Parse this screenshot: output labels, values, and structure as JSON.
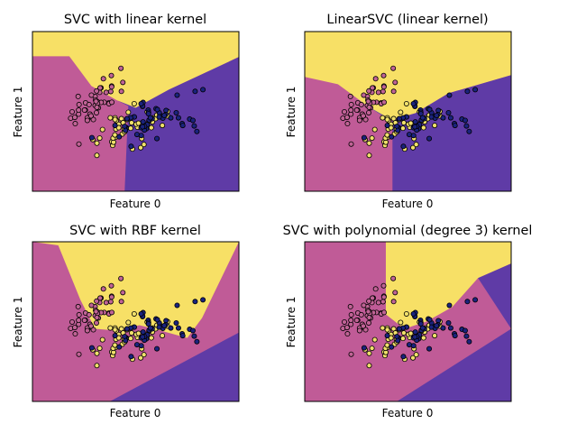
{
  "chart_data": [
    {
      "type": "scatter",
      "title": "SVC with linear kernel",
      "xlabel": "Feature 0",
      "ylabel": "Feature 1",
      "xlim": [
        3.3,
        8.9
      ],
      "ylim": [
        1.0,
        5.4
      ],
      "xticks": [],
      "yticks": [],
      "background": "decision-regions",
      "region_boundaries": [
        [
          3.3,
          4.72
        ],
        [
          4.3,
          4.72
        ],
        [
          4.9,
          3.9
        ],
        [
          5.6,
          3.5
        ],
        [
          6.1,
          3.3
        ],
        [
          7.0,
          3.8
        ],
        [
          8.9,
          4.7
        ]
      ],
      "region_split_x": [
        [
          5.8,
          1.0
        ],
        [
          5.9,
          3.35
        ]
      ]
    },
    {
      "type": "scatter",
      "title": "LinearSVC (linear kernel)",
      "xlabel": "Feature 0",
      "ylabel": "Feature 1",
      "xlim": [
        3.3,
        8.9
      ],
      "ylim": [
        1.0,
        5.4
      ],
      "xticks": [],
      "yticks": [],
      "background": "decision-regions",
      "region_boundaries": [
        [
          3.3,
          4.15
        ],
        [
          4.2,
          3.95
        ],
        [
          5.0,
          3.35
        ],
        [
          5.6,
          2.95
        ],
        [
          6.3,
          3.15
        ],
        [
          7.2,
          3.7
        ],
        [
          8.9,
          4.2
        ]
      ],
      "region_split_x": [
        [
          5.68,
          1.0
        ],
        [
          5.68,
          2.95
        ]
      ]
    },
    {
      "type": "scatter",
      "title": "SVC with RBF kernel",
      "xlabel": "Feature 0",
      "ylabel": "Feature 1",
      "xlim": [
        3.3,
        8.9
      ],
      "ylim": [
        1.0,
        5.4
      ],
      "xticks": [],
      "yticks": [],
      "background": "decision-regions",
      "region_boundaries": [
        [
          3.3,
          5.4
        ],
        [
          4.0,
          5.3
        ],
        [
          4.6,
          3.8
        ],
        [
          5.0,
          3.0
        ],
        [
          5.6,
          2.95
        ],
        [
          6.2,
          3.1
        ],
        [
          6.6,
          3.0
        ],
        [
          7.5,
          2.75
        ],
        [
          7.9,
          3.3
        ]
      ],
      "region_split_x": [
        [
          5.4,
          2.4
        ],
        [
          8.9,
          2.9
        ]
      ]
    },
    {
      "type": "scatter",
      "title": "SVC with polynomial (degree 3) kernel",
      "xlabel": "Feature 0",
      "ylabel": "Feature 1",
      "xlim": [
        3.3,
        8.9
      ],
      "ylim": [
        1.0,
        5.4
      ],
      "xticks": [],
      "yticks": [],
      "background": "decision-regions",
      "region_boundaries": [
        [
          3.3,
          5.4
        ],
        [
          5.5,
          5.4
        ],
        [
          5.5,
          3.4
        ],
        [
          6.0,
          3.0
        ],
        [
          6.6,
          3.2
        ],
        [
          7.3,
          3.6
        ],
        [
          8.0,
          4.4
        ],
        [
          8.9,
          4.8
        ]
      ],
      "region_split_x": [
        [
          5.8,
          2.5
        ],
        [
          8.9,
          3.0
        ]
      ]
    }
  ],
  "points": {
    "description": "Iris dataset, sepal length vs sepal width",
    "class_colors": [
      "#c06395",
      "#f1e06b",
      "#1a237e"
    ],
    "class_labels": [
      "setosa-region",
      "versicolor-region",
      "virginica-region"
    ],
    "x": [
      5.1,
      4.9,
      4.7,
      4.6,
      5.0,
      5.4,
      4.6,
      5.0,
      4.4,
      4.9,
      5.4,
      4.8,
      4.8,
      4.3,
      5.8,
      5.7,
      5.4,
      5.1,
      5.7,
      5.1,
      5.4,
      5.1,
      4.6,
      5.1,
      4.8,
      5.0,
      5.0,
      5.2,
      5.2,
      4.7,
      4.8,
      5.4,
      5.2,
      5.5,
      4.9,
      5.0,
      5.5,
      4.9,
      4.4,
      5.1,
      5.0,
      4.5,
      4.4,
      5.0,
      5.1,
      4.8,
      5.1,
      4.6,
      5.3,
      5.0,
      7.0,
      6.4,
      6.9,
      5.5,
      6.5,
      5.7,
      6.3,
      4.9,
      6.6,
      5.2,
      5.0,
      5.9,
      6.0,
      6.1,
      5.6,
      6.7,
      5.6,
      5.8,
      6.2,
      5.6,
      5.9,
      6.1,
      6.3,
      6.1,
      6.4,
      6.6,
      6.8,
      6.7,
      6.0,
      5.7,
      5.5,
      5.5,
      5.8,
      6.0,
      5.4,
      6.0,
      6.7,
      6.3,
      5.6,
      5.5,
      5.5,
      6.1,
      5.8,
      5.0,
      5.6,
      5.7,
      5.7,
      6.2,
      5.1,
      5.7,
      6.3,
      5.8,
      7.1,
      6.3,
      6.5,
      7.6,
      4.9,
      7.3,
      6.7,
      7.2,
      6.5,
      6.4,
      6.8,
      5.7,
      5.8,
      6.4,
      6.5,
      7.7,
      7.7,
      6.0,
      6.9,
      5.6,
      7.7,
      6.3,
      6.7,
      7.2,
      6.2,
      6.1,
      6.4,
      7.2,
      7.4,
      7.9,
      6.4,
      6.3,
      6.1,
      7.7,
      6.3,
      6.4,
      6.0,
      6.9,
      6.7,
      6.9,
      5.8,
      6.8,
      6.7,
      6.7,
      6.3,
      6.5,
      6.2,
      5.9
    ],
    "y": [
      3.5,
      3.0,
      3.2,
      3.1,
      3.6,
      3.9,
      3.4,
      3.4,
      2.9,
      3.1,
      3.7,
      3.4,
      3.0,
      3.0,
      4.0,
      4.4,
      3.9,
      3.5,
      3.8,
      3.8,
      3.4,
      3.7,
      3.6,
      3.3,
      3.4,
      3.0,
      3.4,
      3.5,
      3.4,
      3.2,
      3.1,
      3.4,
      4.1,
      4.2,
      3.1,
      3.2,
      3.5,
      3.6,
      3.0,
      3.4,
      3.5,
      2.3,
      3.2,
      3.5,
      3.8,
      3.0,
      3.8,
      3.2,
      3.7,
      3.3,
      3.2,
      3.2,
      3.1,
      2.3,
      2.8,
      2.8,
      3.3,
      2.4,
      2.9,
      2.7,
      2.0,
      3.0,
      2.2,
      2.9,
      2.9,
      3.1,
      3.0,
      2.7,
      2.2,
      2.5,
      3.2,
      2.8,
      2.5,
      2.8,
      2.9,
      3.0,
      2.8,
      3.0,
      2.9,
      2.6,
      2.4,
      2.4,
      2.7,
      2.7,
      3.0,
      3.4,
      3.1,
      2.3,
      3.0,
      2.5,
      2.6,
      3.0,
      2.6,
      2.3,
      2.7,
      3.0,
      2.9,
      2.9,
      2.5,
      2.8,
      3.3,
      2.7,
      3.0,
      2.9,
      3.0,
      3.0,
      2.5,
      2.9,
      2.5,
      3.6,
      3.2,
      2.7,
      3.0,
      2.5,
      2.8,
      3.2,
      3.0,
      3.8,
      2.6,
      2.2,
      3.2,
      2.8,
      2.8,
      2.7,
      3.3,
      3.2,
      2.8,
      3.0,
      2.8,
      3.0,
      2.8,
      3.8,
      2.8,
      2.8,
      2.6,
      3.0,
      3.4,
      3.1,
      3.0,
      3.1,
      3.1,
      3.1,
      2.7,
      3.2,
      3.3,
      3.0,
      2.5,
      3.0,
      3.4,
      3.0
    ],
    "target": [
      0,
      0,
      0,
      0,
      0,
      0,
      0,
      0,
      0,
      0,
      0,
      0,
      0,
      0,
      0,
      0,
      0,
      0,
      0,
      0,
      0,
      0,
      0,
      0,
      0,
      0,
      0,
      0,
      0,
      0,
      0,
      0,
      0,
      0,
      0,
      0,
      0,
      0,
      0,
      0,
      0,
      0,
      0,
      0,
      0,
      0,
      0,
      0,
      0,
      0,
      1,
      1,
      1,
      1,
      1,
      1,
      1,
      1,
      1,
      1,
      1,
      1,
      1,
      1,
      1,
      1,
      1,
      1,
      1,
      1,
      1,
      1,
      1,
      1,
      1,
      1,
      1,
      1,
      1,
      1,
      1,
      1,
      1,
      1,
      1,
      1,
      1,
      1,
      1,
      1,
      1,
      1,
      1,
      1,
      1,
      1,
      1,
      1,
      1,
      1,
      2,
      2,
      2,
      2,
      2,
      2,
      2,
      2,
      2,
      2,
      2,
      2,
      2,
      2,
      2,
      2,
      2,
      2,
      2,
      2,
      2,
      2,
      2,
      2,
      2,
      2,
      2,
      2,
      2,
      2,
      2,
      2,
      2,
      2,
      2,
      2,
      2,
      2,
      2,
      2,
      2,
      2,
      2,
      2,
      2,
      2,
      2,
      2,
      2,
      2
    ]
  }
}
